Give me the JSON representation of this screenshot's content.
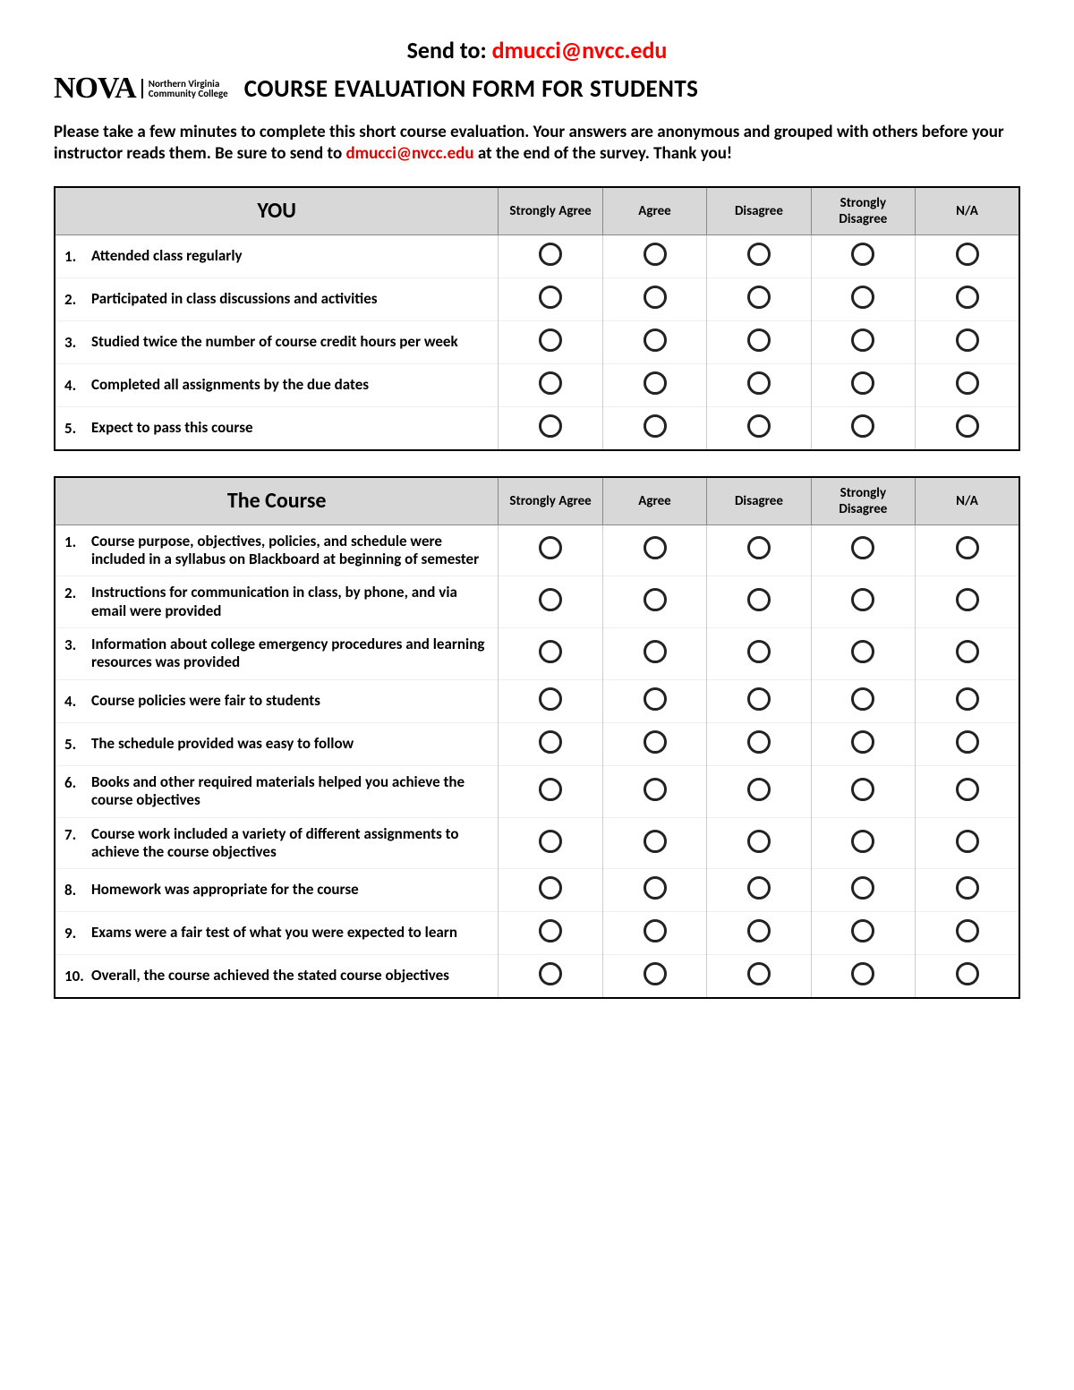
{
  "send_to_prefix": "Send to: ",
  "send_to_email": "dmucci@nvcc.edu",
  "logo_main": "NOVA",
  "logo_sub_line1": "Northern Virginia",
  "logo_sub_line2": "Community College",
  "main_title": "COURSE EVALUATION FORM FOR STUDENTS",
  "intro_part1": "Please take a few minutes to complete this short course evaluation. Your answers are anonymous and grouped with others before your instructor reads them. Be sure to send to ",
  "intro_email": "dmucci@nvcc.edu",
  "intro_part2": " at the end of the survey. Thank you!",
  "rating_headers": [
    "Strongly Agree",
    "Agree",
    "Disagree",
    "Strongly Disagree",
    "N/A"
  ],
  "sections": [
    {
      "title": "YOU",
      "questions": [
        "Attended class regularly",
        "Participated in class discussions and activities",
        "Studied twice the number of course credit hours per week",
        "Completed all assignments by the due dates",
        "Expect to pass this course"
      ]
    },
    {
      "title": "The Course",
      "questions": [
        "Course purpose, objectives, policies, and schedule were included in a syllabus on Blackboard at beginning of semester",
        "Instructions for communication in class, by phone, and via email were provided",
        "Information about college emergency procedures and learning resources was provided",
        "Course policies were fair to students",
        "The schedule provided was easy to follow",
        "Books and other required materials helped you achieve the course objectives",
        "Course work included a variety of different assignments to achieve the course objectives",
        "Homework was appropriate for the course",
        "Exams were a fair test of what you were expected to learn",
        "Overall, the course achieved the stated course objectives"
      ]
    }
  ],
  "colors": {
    "email": "#ff0000",
    "header_bg": "#d8d8d8",
    "text": "#000000",
    "background": "#ffffff"
  }
}
